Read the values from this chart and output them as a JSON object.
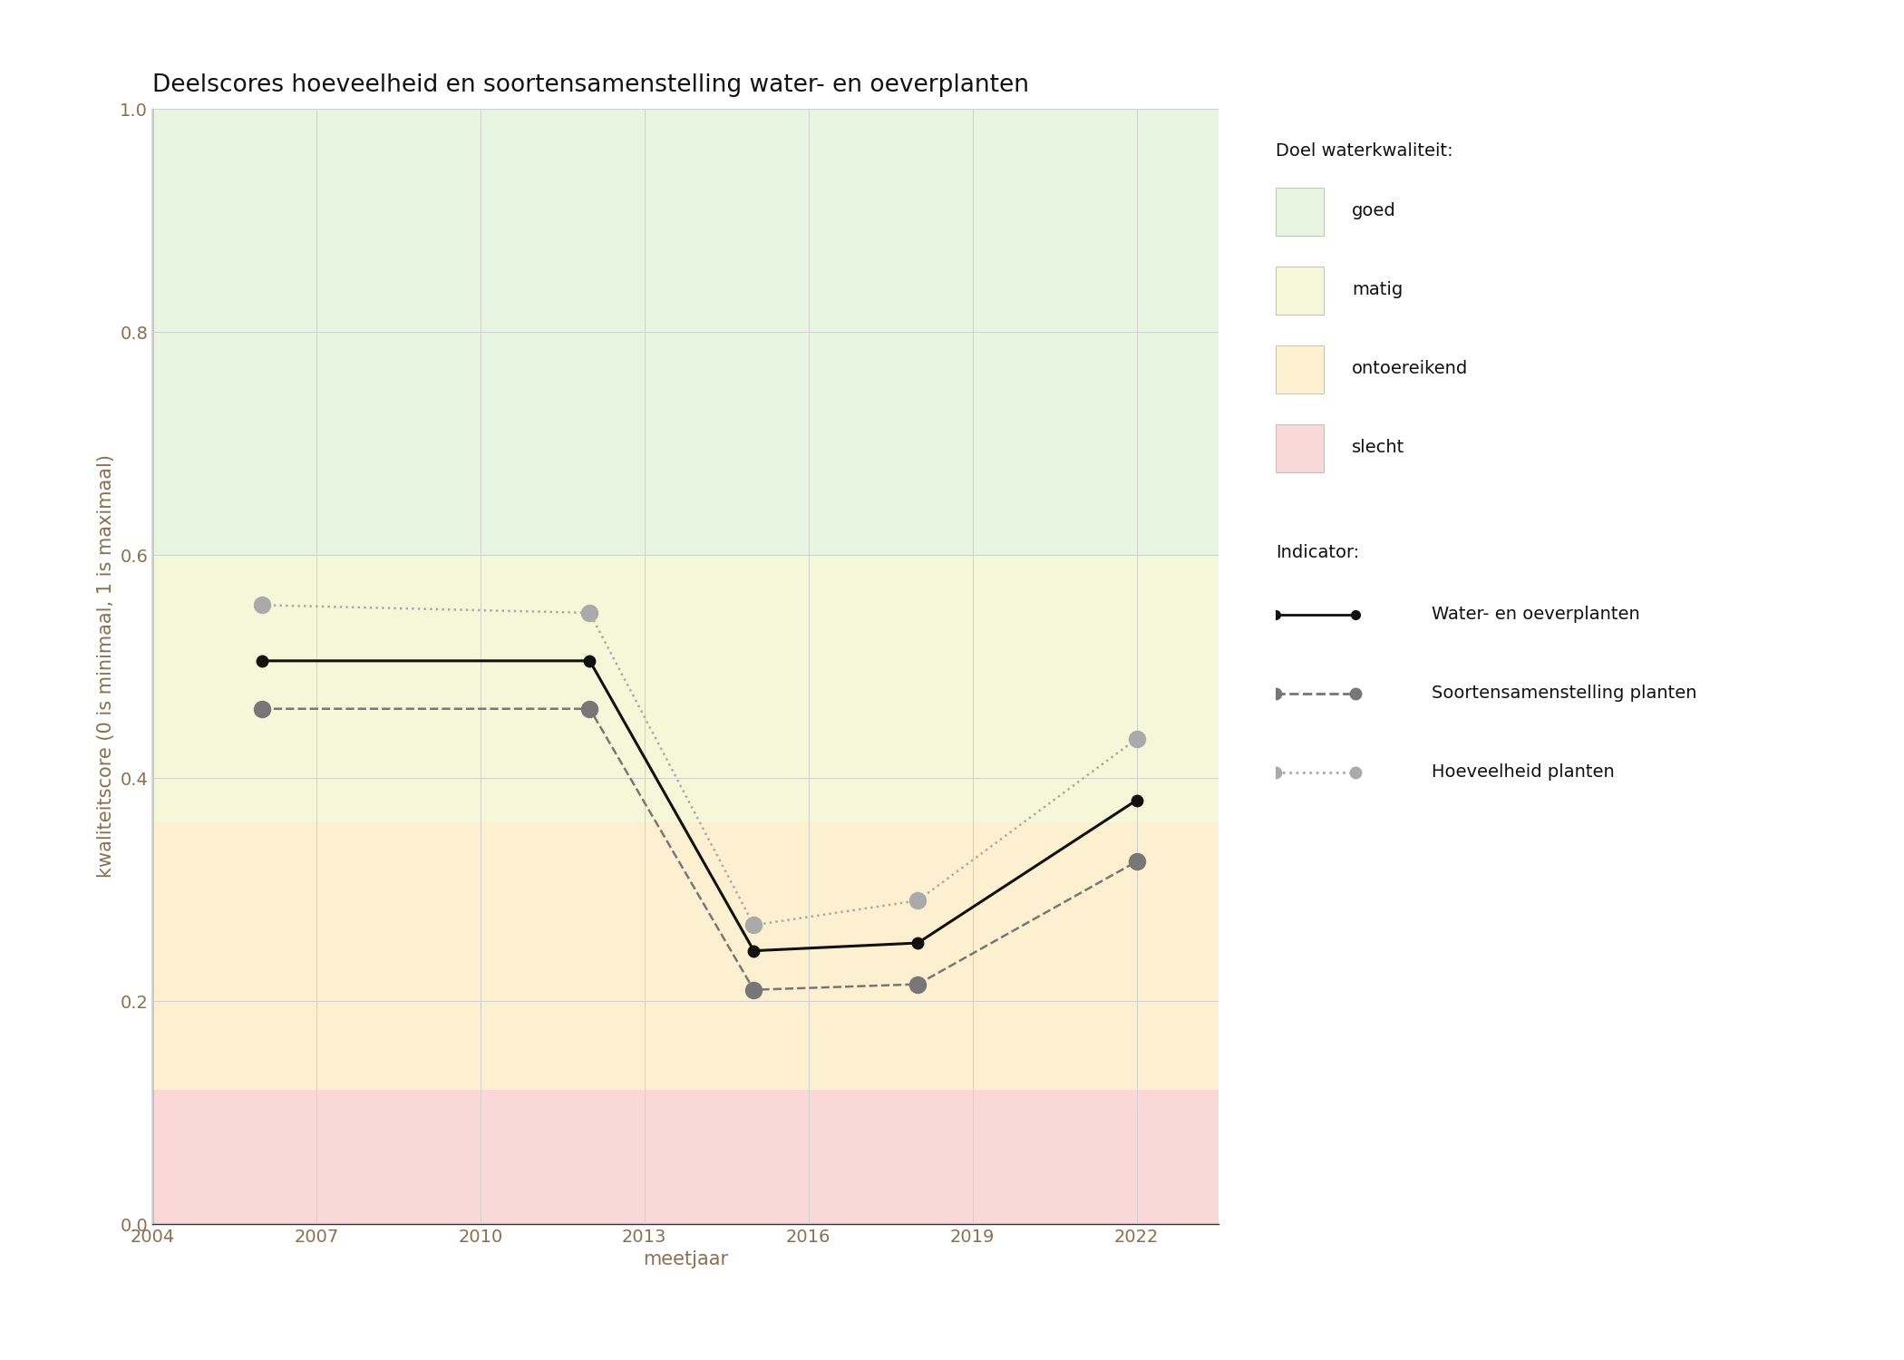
{
  "title": "Deelscores hoeveelheid en soortensamenstelling water- en oeverplanten",
  "xlabel": "meetjaar",
  "ylabel": "kwaliteitscore (0 is minimaal, 1 is maximaal)",
  "xlim": [
    2004,
    2023.5
  ],
  "ylim": [
    0.0,
    1.0
  ],
  "xticks": [
    2004,
    2007,
    2010,
    2013,
    2016,
    2019,
    2022
  ],
  "yticks": [
    0.0,
    0.2,
    0.4,
    0.6,
    0.8,
    1.0
  ],
  "bg_zones": [
    {
      "ymin": 0.6,
      "ymax": 1.0,
      "color": "#e8f5e0",
      "label": "goed"
    },
    {
      "ymin": 0.36,
      "ymax": 0.6,
      "color": "#f5f8d8",
      "label": "matig"
    },
    {
      "ymin": 0.12,
      "ymax": 0.36,
      "color": "#fdf0d0",
      "label": "ontoereikend"
    },
    {
      "ymin": 0.0,
      "ymax": 0.12,
      "color": "#fad8d8",
      "label": "slecht"
    }
  ],
  "lines": [
    {
      "label": "Water- en oeverplanten",
      "x": [
        2006,
        2012,
        2015,
        2018,
        2022
      ],
      "y": [
        0.505,
        0.505,
        0.245,
        0.252,
        0.38
      ],
      "color": "#111111",
      "linestyle": "solid",
      "linewidth": 2.2,
      "marker": "o",
      "markersize": 9,
      "markerfacecolor": "#111111",
      "zorder": 5
    },
    {
      "label": "Soortensamenstelling planten",
      "x": [
        2006,
        2012,
        2015,
        2018,
        2022
      ],
      "y": [
        0.462,
        0.462,
        0.21,
        0.215,
        0.325
      ],
      "color": "#777777",
      "linestyle": "dashed",
      "linewidth": 1.8,
      "marker": "o",
      "markersize": 13,
      "markerfacecolor": "#777777",
      "zorder": 4
    },
    {
      "label": "Hoeveelheid planten",
      "x": [
        2006,
        2012,
        2015,
        2018,
        2022
      ],
      "y": [
        0.555,
        0.548,
        0.268,
        0.29,
        0.435
      ],
      "color": "#aaaaaa",
      "linestyle": "dotted",
      "linewidth": 1.8,
      "marker": "o",
      "markersize": 13,
      "markerfacecolor": "#aaaaaa",
      "zorder": 3
    }
  ],
  "legend_quality": {
    "title": "Doel waterkwaliteit:",
    "items": [
      {
        "label": "goed",
        "color": "#e8f5e0"
      },
      {
        "label": "matig",
        "color": "#f5f8d8"
      },
      {
        "label": "ontoereikend",
        "color": "#fdf0d0"
      },
      {
        "label": "slecht",
        "color": "#fad8d8"
      }
    ]
  },
  "legend_indicator": {
    "title": "Indicator:",
    "items": [
      {
        "label": "Water- en oeverplanten",
        "color": "#111111",
        "linestyle": "solid",
        "markersize": 7
      },
      {
        "label": "Soortensamenstelling planten",
        "color": "#777777",
        "linestyle": "dashed",
        "markersize": 9
      },
      {
        "label": "Hoeveelheid planten",
        "color": "#aaaaaa",
        "linestyle": "dotted",
        "markersize": 9
      }
    ]
  },
  "background_color": "#ffffff",
  "grid_color": "#d0d0d0",
  "title_fontsize": 19,
  "label_fontsize": 15,
  "tick_fontsize": 14,
  "tick_color": "#8a7050",
  "axis_label_color": "#8a7050"
}
